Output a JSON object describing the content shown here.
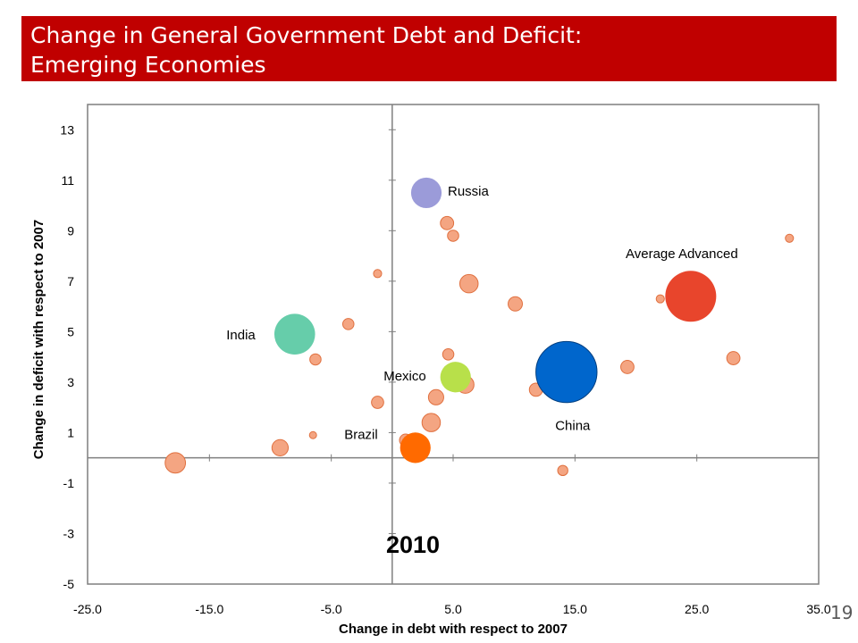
{
  "header": {
    "title_line1": "Change in General Government Debt and Deficit:",
    "title_line2": "Emerging Economies"
  },
  "slide": {
    "page_number": "19"
  },
  "colors": {
    "header_bg": "#c00000",
    "other": "#f4a582",
    "other_stroke": "#e0703f",
    "russia": "#9b9bd9",
    "india": "#66cdaa",
    "mexico": "#b8e04a",
    "brazil": "#ff6a00",
    "china": "#0066cc",
    "average_advanced": "#e8452c"
  },
  "chart_data": {
    "type": "scatter",
    "subtype": "bubble",
    "title": "",
    "xlabel": "Change in debt with respect to 2007",
    "ylabel": "Change in deficit with respect to 2007",
    "xlim": [
      -25,
      35
    ],
    "ylim": [
      -5,
      14
    ],
    "xticks": [
      "-25.0",
      "-15.0",
      "-5.0",
      "5.0",
      "15.0",
      "25.0",
      "35.0"
    ],
    "yticks": [
      "13",
      "11",
      "9",
      "7",
      "5",
      "3",
      "1",
      "-1",
      "-3",
      "-5"
    ],
    "annotation": "2010",
    "labeled_points": [
      {
        "name": "Russia",
        "x": 2.8,
        "y": 10.5,
        "size": 3,
        "color": "#9b9bd9"
      },
      {
        "name": "India",
        "x": -8.0,
        "y": 4.9,
        "size": 4,
        "color": "#66cdaa"
      },
      {
        "name": "Mexico",
        "x": 5.2,
        "y": 3.2,
        "size": 3,
        "color": "#b8e04a"
      },
      {
        "name": "Brazil",
        "x": 1.9,
        "y": 0.4,
        "size": 3,
        "color": "#ff6a00"
      },
      {
        "name": "China",
        "x": 14.3,
        "y": 3.4,
        "size": 6,
        "color": "#0066cc"
      },
      {
        "name": "Average Advanced",
        "x": 24.5,
        "y": 6.4,
        "size": 5,
        "color": "#e8452c"
      }
    ],
    "other_points": [
      {
        "x": -17.8,
        "y": -0.2,
        "size": 2
      },
      {
        "x": -9.2,
        "y": 0.4,
        "size": 1.6
      },
      {
        "x": -6.5,
        "y": 0.9,
        "size": 0.7
      },
      {
        "x": -6.3,
        "y": 3.9,
        "size": 1.1
      },
      {
        "x": -3.6,
        "y": 5.3,
        "size": 1.1
      },
      {
        "x": -1.2,
        "y": 7.3,
        "size": 0.8
      },
      {
        "x": -1.2,
        "y": 2.2,
        "size": 1.2
      },
      {
        "x": 1.1,
        "y": 0.7,
        "size": 1.2
      },
      {
        "x": 3.2,
        "y": 1.4,
        "size": 1.8
      },
      {
        "x": 3.6,
        "y": 2.4,
        "size": 1.5
      },
      {
        "x": 4.6,
        "y": 4.1,
        "size": 1.1
      },
      {
        "x": 4.5,
        "y": 9.3,
        "size": 1.3
      },
      {
        "x": 5.0,
        "y": 8.8,
        "size": 1.1
      },
      {
        "x": 6.0,
        "y": 2.9,
        "size": 1.7
      },
      {
        "x": 6.3,
        "y": 6.9,
        "size": 1.8
      },
      {
        "x": 10.1,
        "y": 6.1,
        "size": 1.4
      },
      {
        "x": 11.8,
        "y": 2.7,
        "size": 1.3
      },
      {
        "x": 14.0,
        "y": -0.5,
        "size": 1.0
      },
      {
        "x": 19.3,
        "y": 3.6,
        "size": 1.3
      },
      {
        "x": 22.0,
        "y": 6.3,
        "size": 0.8
      },
      {
        "x": 28.0,
        "y": 3.95,
        "size": 1.3
      },
      {
        "x": 32.6,
        "y": 8.7,
        "size": 0.8
      }
    ]
  }
}
